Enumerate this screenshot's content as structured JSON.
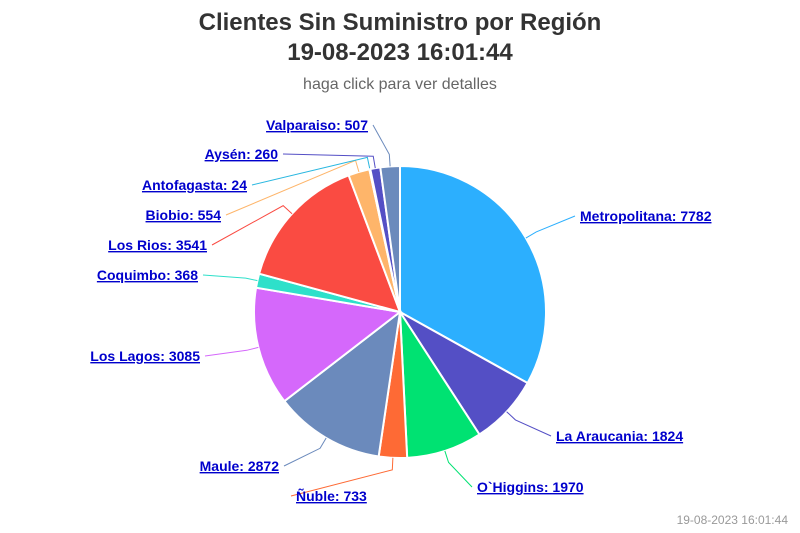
{
  "title_line1": "Clientes Sin Suministro por Región",
  "title_line2": "19-08-2023 16:01:44",
  "subtitle": "haga click para ver detalles",
  "timestamp": "19-08-2023 16:01:44",
  "chart_data": {
    "type": "pie",
    "title": "Clientes Sin Suministro por Región 19-08-2023 16:01:44",
    "subtitle": "haga click para ver detalles",
    "slices": [
      {
        "name": "Metropolitana",
        "value": 7782,
        "color": "#2caffe",
        "label": "Metropolitana: 7782"
      },
      {
        "name": "La Araucania",
        "value": 1824,
        "color": "#544fc5",
        "label": "La Araucania: 1824"
      },
      {
        "name": "O`Higgins",
        "value": 1970,
        "color": "#00e272",
        "label": "O`Higgins: 1970"
      },
      {
        "name": "Ñuble",
        "value": 733,
        "color": "#fe6a35",
        "label": "Ñuble: 733"
      },
      {
        "name": "Maule",
        "value": 2872,
        "color": "#6b8abc",
        "label": "Maule: 2872"
      },
      {
        "name": "Los Lagos",
        "value": 3085,
        "color": "#d568fb",
        "label": "Los Lagos: 3085"
      },
      {
        "name": "Coquimbo",
        "value": 368,
        "color": "#2ee0ca",
        "label": "Coquimbo: 368"
      },
      {
        "name": "Los Rios",
        "value": 3541,
        "color": "#fa4b42",
        "label": "Los Rios: 3541"
      },
      {
        "name": "Biobio",
        "value": 554,
        "color": "#feb56a",
        "label": "Biobio: 554"
      },
      {
        "name": "Antofagasta",
        "value": 24,
        "color": "#29b7e0",
        "label": "Antofagasta: 24"
      },
      {
        "name": "Aysén",
        "value": 260,
        "color": "#544fc5",
        "label": "Aysén: 260"
      },
      {
        "name": "Valparaiso",
        "value": 507,
        "color": "#6b8abc",
        "label": "Valparaiso: 507"
      }
    ]
  }
}
